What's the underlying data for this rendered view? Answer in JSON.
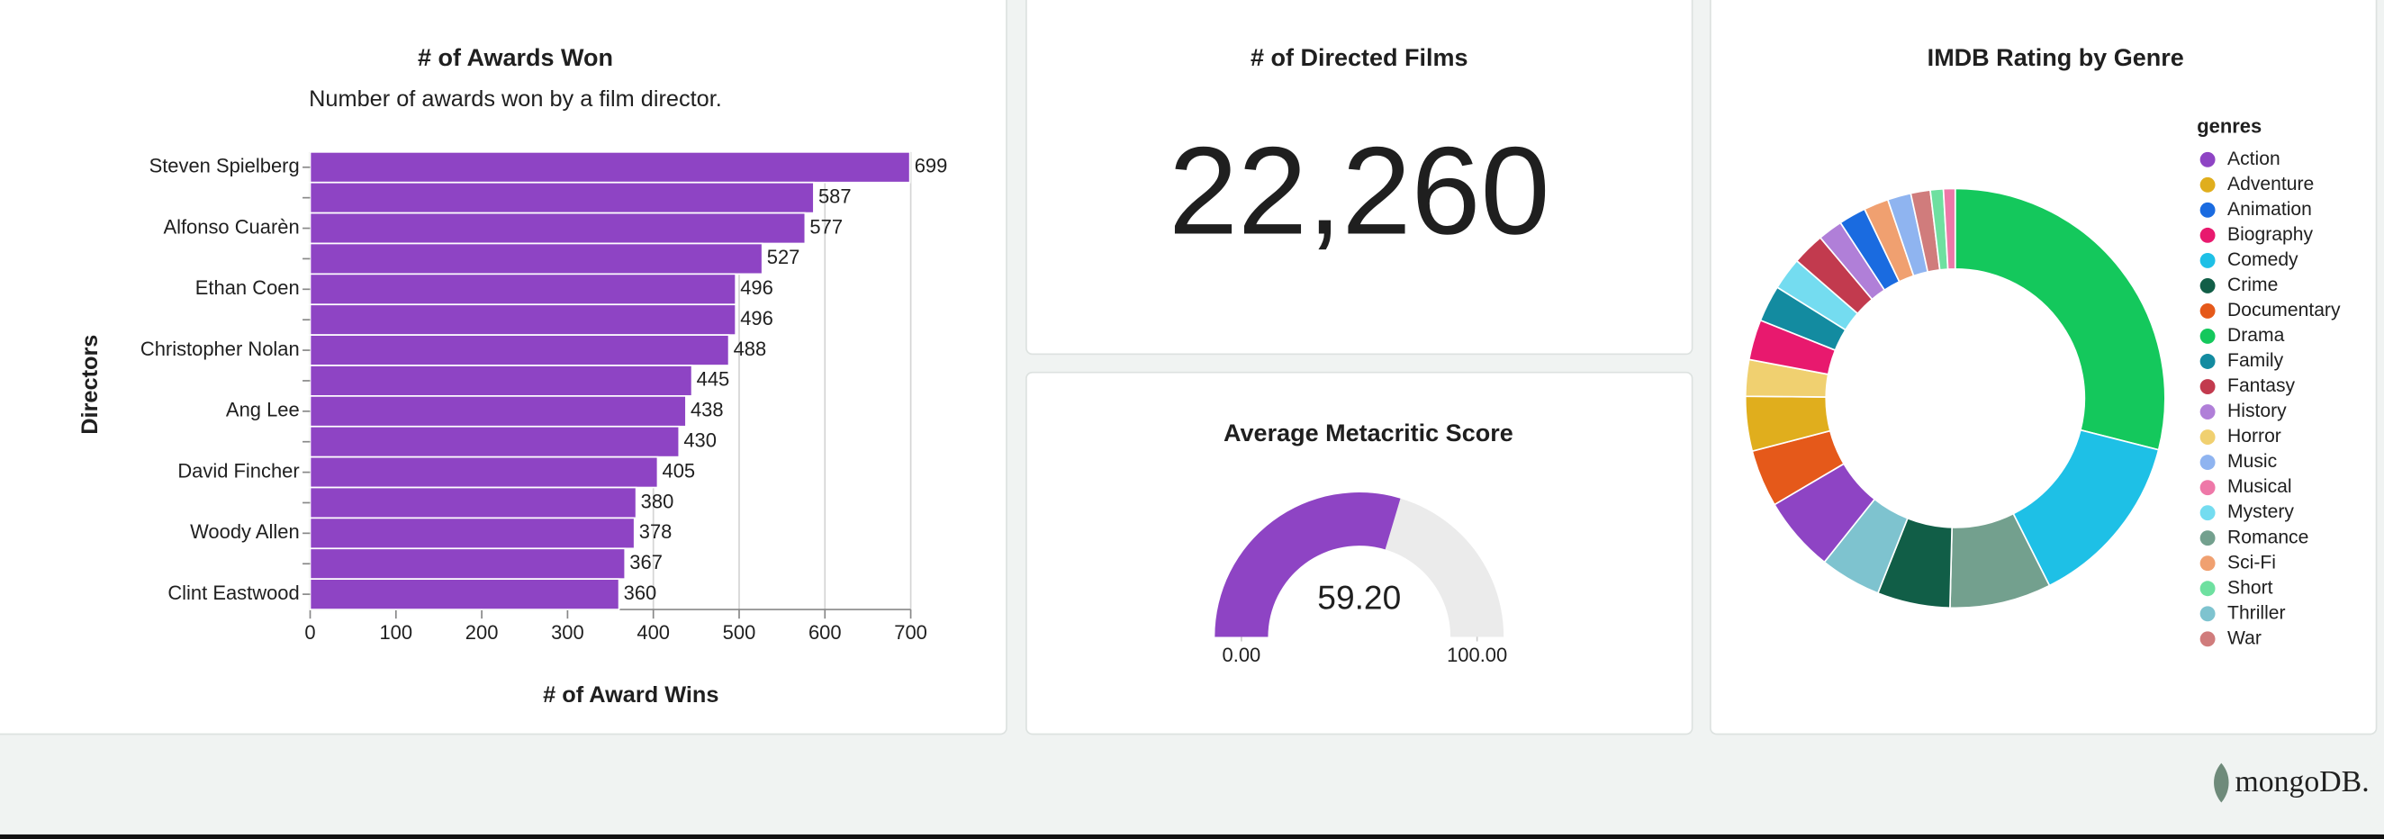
{
  "chart_data": [
    {
      "type": "bar",
      "orientation": "horizontal",
      "title": "# of Awards Won",
      "subtitle": "Number of awards won by a film director.",
      "x_label": "# of Award Wins",
      "y_label": "Directors",
      "categories": [
        "Steven Spielberg",
        null,
        "Alfonso Cuarèn",
        null,
        "Ethan Coen",
        null,
        "Christopher Nolan",
        null,
        "Ang Lee",
        null,
        "David Fincher",
        null,
        "Woody Allen",
        null,
        "Clint Eastwood"
      ],
      "values": [
        699,
        587,
        577,
        527,
        496,
        496,
        488,
        445,
        438,
        430,
        405,
        380,
        378,
        367,
        360
      ],
      "color": "#8e44c4",
      "xlim": [
        0,
        700
      ],
      "xticks": [
        0,
        100,
        200,
        300,
        400,
        500,
        600,
        700
      ],
      "grid": true
    },
    {
      "type": "number",
      "title": "# of Directed Films",
      "values": [
        22260
      ],
      "value_labels": [
        "22,260"
      ]
    },
    {
      "type": "gauge",
      "title": "Average Metacritic Score",
      "values": [
        59.2
      ],
      "value_labels": [
        "59.20"
      ],
      "ylim": [
        0,
        100
      ],
      "yticks": [
        {
          "value": 0,
          "label": "0.00"
        },
        {
          "value": 100,
          "label": "100.00"
        }
      ],
      "color": "#8e44c4",
      "track_color": "#ebebeb"
    },
    {
      "type": "donut",
      "title": "IMDB Rating by Genre",
      "legend_title": "genres",
      "categories": [
        "Drama",
        "Comedy",
        "Romance",
        "Crime",
        "Thriller",
        "Action",
        "Documentary",
        "Adventure",
        "Horror",
        "Biography",
        "Family",
        "Mystery",
        "Fantasy",
        "History",
        "Animation",
        "Sci-Fi",
        "Music",
        "War",
        "Short",
        "Musical"
      ],
      "values": [
        28.9,
        13.6,
        7.8,
        5.6,
        4.7,
        5.8,
        4.4,
        4.2,
        2.8,
        3.1,
        2.8,
        2.5,
        2.5,
        1.9,
        2.1,
        1.9,
        1.8,
        1.5,
        1.0,
        0.9
      ],
      "colors": [
        "#14c85c",
        "#1ec0e6",
        "#73a08e",
        "#115e47",
        "#7ec3cf",
        "#8e44c4",
        "#e5591a",
        "#e0ae1d",
        "#f0d070",
        "#e8196e",
        "#138ba0",
        "#74dcf0",
        "#c23a4e",
        "#b07fd8",
        "#1a6be0",
        "#f0a070",
        "#8fb4f0",
        "#d07c7c",
        "#6ee0a0",
        "#ee78a8"
      ],
      "legend": [
        "Action",
        "Adventure",
        "Animation",
        "Biography",
        "Comedy",
        "Crime",
        "Documentary",
        "Drama",
        "Family",
        "Fantasy",
        "History",
        "Horror",
        "Music",
        "Musical",
        "Mystery",
        "Romance",
        "Sci-Fi",
        "Short",
        "Thriller",
        "War"
      ],
      "legend_position": "right"
    }
  ],
  "footer": {
    "logo": "mongoDB."
  }
}
